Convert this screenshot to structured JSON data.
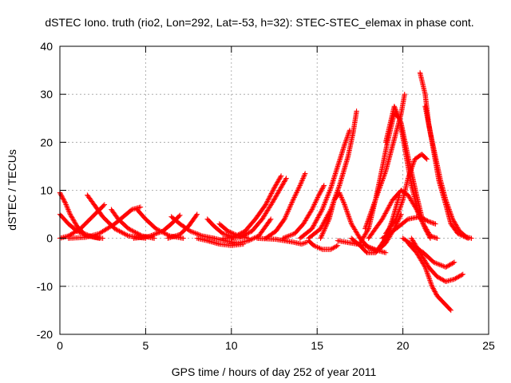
{
  "chart_data": {
    "type": "scatter",
    "title": "dSTEC Iono. truth (rio2, Lon=292, Lat=-53, h=32): STEC-STEC_elemax in phase cont.",
    "xlabel": "GPS time / hours of day 252 of year 2011",
    "ylabel": "dSTEC  / TECUs",
    "xlim": [
      0,
      25
    ],
    "ylim": [
      -20,
      40
    ],
    "xticks": [
      0,
      5,
      10,
      15,
      20,
      25
    ],
    "yticks": [
      -20,
      -10,
      0,
      10,
      20,
      30,
      40
    ],
    "xtick_labels": [
      "0",
      "5",
      "10",
      "15",
      "20",
      "25"
    ],
    "ytick_labels": [
      "-20",
      "-10",
      "0",
      "10",
      "20",
      "30",
      "40"
    ],
    "grid": true,
    "marker": "plus",
    "color": "#ff0000",
    "series": [
      {
        "points": [
          [
            0.0,
            9.5
          ],
          [
            0.3,
            7.5
          ],
          [
            0.6,
            5.0
          ],
          [
            1.0,
            2.5
          ],
          [
            1.4,
            1.0
          ],
          [
            1.9,
            0.3
          ],
          [
            2.5,
            0.0
          ]
        ]
      },
      {
        "points": [
          [
            0.0,
            5.0
          ],
          [
            0.5,
            3.0
          ],
          [
            1.0,
            1.5
          ],
          [
            1.6,
            0.5
          ],
          [
            2.3,
            0.0
          ]
        ]
      },
      {
        "points": [
          [
            0.0,
            0.0
          ],
          [
            0.5,
            0.5
          ],
          [
            1.2,
            2.0
          ],
          [
            1.9,
            4.5
          ],
          [
            2.6,
            7.0
          ]
        ]
      },
      {
        "points": [
          [
            0.5,
            0.0
          ],
          [
            1.5,
            0.2
          ],
          [
            2.3,
            1.0
          ],
          [
            3.2,
            3.0
          ],
          [
            4.2,
            6.0
          ],
          [
            4.7,
            6.5
          ]
        ]
      },
      {
        "points": [
          [
            1.6,
            9.0
          ],
          [
            2.0,
            7.0
          ],
          [
            2.5,
            4.5
          ],
          [
            3.2,
            2.0
          ],
          [
            4.0,
            0.5
          ],
          [
            5.0,
            0.0
          ]
        ]
      },
      {
        "points": [
          [
            3.0,
            6.0
          ],
          [
            3.4,
            4.0
          ],
          [
            4.0,
            2.0
          ],
          [
            4.8,
            0.5
          ],
          [
            5.5,
            0.0
          ]
        ]
      },
      {
        "points": [
          [
            4.5,
            6.0
          ],
          [
            5.0,
            4.0
          ],
          [
            5.6,
            2.0
          ],
          [
            6.4,
            0.5
          ],
          [
            7.2,
            0.0
          ]
        ]
      },
      {
        "points": [
          [
            4.3,
            0.0
          ],
          [
            5.2,
            0.4
          ],
          [
            6.0,
            1.5
          ],
          [
            6.5,
            3.0
          ],
          [
            7.0,
            4.8
          ]
        ]
      },
      {
        "points": [
          [
            6.5,
            4.5
          ],
          [
            7.0,
            3.0
          ],
          [
            7.6,
            1.5
          ],
          [
            8.3,
            0.5
          ],
          [
            9.0,
            0.0
          ]
        ]
      },
      {
        "points": [
          [
            6.3,
            0.0
          ],
          [
            7.0,
            0.8
          ],
          [
            7.5,
            2.5
          ],
          [
            8.0,
            5.0
          ]
        ]
      },
      {
        "points": [
          [
            8.6,
            4.0
          ],
          [
            9.0,
            2.5
          ],
          [
            9.5,
            1.0
          ],
          [
            10.2,
            0.2
          ]
        ]
      },
      {
        "points": [
          [
            9.3,
            3.0
          ],
          [
            9.8,
            1.5
          ],
          [
            10.4,
            0.5
          ],
          [
            11.0,
            0.0
          ]
        ]
      },
      {
        "points": [
          [
            8.0,
            0.0
          ],
          [
            8.6,
            -0.5
          ],
          [
            9.3,
            -1.2
          ],
          [
            10.0,
            -1.5
          ],
          [
            10.7,
            -1.2
          ]
        ]
      },
      {
        "points": [
          [
            9.5,
            0.0
          ],
          [
            10.5,
            0.2
          ],
          [
            11.2,
            1.5
          ],
          [
            11.8,
            4.0
          ],
          [
            12.4,
            7.5
          ],
          [
            12.8,
            10.0
          ],
          [
            13.2,
            12.5
          ]
        ]
      },
      {
        "points": [
          [
            10.0,
            0.0
          ],
          [
            10.8,
            1.5
          ],
          [
            11.4,
            4.0
          ],
          [
            12.0,
            7.0
          ],
          [
            12.5,
            10.5
          ],
          [
            12.9,
            13.0
          ]
        ]
      },
      {
        "points": [
          [
            9.0,
            0.0
          ],
          [
            9.6,
            -0.5
          ],
          [
            10.4,
            -1.0
          ],
          [
            11.0,
            -0.5
          ],
          [
            11.6,
            0.5
          ],
          [
            12.0,
            2.5
          ],
          [
            12.3,
            4.0
          ]
        ]
      },
      {
        "points": [
          [
            12.0,
            0.0
          ],
          [
            12.6,
            1.5
          ],
          [
            13.1,
            4.0
          ],
          [
            13.6,
            8.0
          ],
          [
            14.0,
            11.0
          ],
          [
            14.3,
            13.5
          ]
        ]
      },
      {
        "points": [
          [
            13.0,
            0.0
          ],
          [
            13.7,
            1.0
          ],
          [
            14.2,
            3.0
          ],
          [
            14.7,
            6.0
          ],
          [
            15.1,
            9.0
          ],
          [
            15.4,
            11.0
          ]
        ]
      },
      {
        "points": [
          [
            11.5,
            0.0
          ],
          [
            12.6,
            -0.2
          ],
          [
            13.6,
            -0.8
          ],
          [
            14.1,
            -1.2
          ],
          [
            14.4,
            -0.8
          ]
        ]
      },
      {
        "points": [
          [
            14.5,
            -0.5
          ],
          [
            14.8,
            -1.5
          ],
          [
            15.3,
            -2.3
          ],
          [
            15.8,
            -2.3
          ],
          [
            16.2,
            -1.5
          ]
        ]
      },
      {
        "points": [
          [
            14.0,
            0.0
          ],
          [
            14.7,
            2.0
          ],
          [
            15.3,
            6.0
          ],
          [
            15.8,
            10.5
          ],
          [
            16.2,
            15.0
          ],
          [
            16.6,
            19.5
          ],
          [
            16.9,
            22.5
          ]
        ]
      },
      {
        "points": [
          [
            14.5,
            0.0
          ],
          [
            15.2,
            2.0
          ],
          [
            15.8,
            6.0
          ],
          [
            16.3,
            11.0
          ],
          [
            16.8,
            17.0
          ],
          [
            17.1,
            22.0
          ],
          [
            17.3,
            26.5
          ]
        ]
      },
      {
        "points": [
          [
            15.2,
            0.0
          ],
          [
            15.7,
            4.0
          ],
          [
            16.0,
            8.0
          ],
          [
            16.3,
            9.5
          ],
          [
            16.6,
            7.0
          ],
          [
            17.0,
            3.0
          ],
          [
            17.5,
            0.0
          ]
        ]
      },
      {
        "points": [
          [
            16.2,
            -0.5
          ],
          [
            17.0,
            -1.0
          ],
          [
            17.8,
            -1.5
          ],
          [
            18.5,
            -2.5
          ],
          [
            19.0,
            -3.0
          ]
        ]
      },
      {
        "points": [
          [
            17.0,
            0.0
          ],
          [
            17.5,
            -1.5
          ],
          [
            17.9,
            -3.0
          ],
          [
            18.4,
            -3.0
          ],
          [
            19.0,
            -1.0
          ],
          [
            19.5,
            2.0
          ],
          [
            19.9,
            5.0
          ]
        ]
      },
      {
        "points": [
          [
            17.5,
            0.0
          ],
          [
            18.0,
            -2.0
          ],
          [
            18.5,
            -2.5
          ],
          [
            19.0,
            0.0
          ],
          [
            19.4,
            4.0
          ],
          [
            19.8,
            9.0
          ]
        ]
      },
      {
        "points": [
          [
            17.5,
            -1.0
          ],
          [
            18.0,
            2.0
          ],
          [
            18.4,
            8.0
          ],
          [
            18.7,
            13.0
          ],
          [
            19.1,
            20.0
          ],
          [
            19.3,
            23.0
          ],
          [
            19.5,
            26.0
          ],
          [
            19.8,
            25.0
          ],
          [
            20.1,
            19.0
          ],
          [
            20.5,
            11.0
          ],
          [
            21.0,
            4.0
          ]
        ]
      },
      {
        "points": [
          [
            17.8,
            2.0
          ],
          [
            18.2,
            6.0
          ],
          [
            18.6,
            10.0
          ],
          [
            19.0,
            14.0
          ],
          [
            19.3,
            18.0
          ],
          [
            19.6,
            22.0
          ],
          [
            19.9,
            26.0
          ],
          [
            20.1,
            30.0
          ]
        ]
      },
      {
        "points": [
          [
            19.0,
            20.0
          ],
          [
            19.5,
            27.5
          ],
          [
            19.9,
            24.0
          ],
          [
            20.3,
            17.0
          ],
          [
            20.8,
            9.0
          ],
          [
            21.2,
            3.0
          ],
          [
            21.6,
            0.5
          ],
          [
            22.0,
            0.0
          ]
        ]
      },
      {
        "points": [
          [
            18.0,
            0.0
          ],
          [
            18.8,
            4.0
          ],
          [
            19.4,
            8.0
          ],
          [
            19.9,
            10.0
          ],
          [
            20.3,
            9.0
          ],
          [
            20.8,
            6.0
          ],
          [
            21.3,
            2.0
          ],
          [
            21.6,
            0.0
          ]
        ]
      },
      {
        "points": [
          [
            18.8,
            0.0
          ],
          [
            19.6,
            2.0
          ],
          [
            20.3,
            4.0
          ],
          [
            21.0,
            4.5
          ],
          [
            21.5,
            3.5
          ],
          [
            21.9,
            3.0
          ]
        ]
      },
      {
        "points": [
          [
            19.0,
            1.0
          ],
          [
            19.6,
            4.0
          ],
          [
            20.0,
            8.0
          ],
          [
            20.3,
            12.5
          ],
          [
            20.7,
            16.5
          ],
          [
            21.1,
            17.5
          ],
          [
            21.4,
            16.5
          ]
        ]
      },
      {
        "points": [
          [
            20.0,
            0.0
          ],
          [
            20.6,
            -1.5
          ],
          [
            21.2,
            -3.0
          ],
          [
            21.8,
            -5.0
          ],
          [
            22.5,
            -6.0
          ],
          [
            23.0,
            -5.0
          ]
        ]
      },
      {
        "points": [
          [
            20.5,
            0.0
          ],
          [
            21.0,
            -3.0
          ],
          [
            21.5,
            -6.0
          ],
          [
            22.0,
            -8.0
          ],
          [
            22.5,
            -9.0
          ],
          [
            23.0,
            -8.5
          ],
          [
            23.5,
            -7.5
          ]
        ]
      },
      {
        "points": [
          [
            20.3,
            -1.0
          ],
          [
            20.8,
            -3.0
          ],
          [
            21.3,
            -6.0
          ],
          [
            21.7,
            -10.0
          ],
          [
            22.0,
            -12.0
          ],
          [
            22.4,
            -13.5
          ],
          [
            22.8,
            -15.0
          ]
        ]
      },
      {
        "points": [
          [
            21.0,
            34.5
          ],
          [
            21.3,
            30.0
          ],
          [
            21.5,
            24.0
          ],
          [
            21.8,
            18.0
          ],
          [
            22.1,
            12.0
          ],
          [
            22.5,
            7.0
          ],
          [
            22.8,
            3.0
          ],
          [
            23.2,
            1.0
          ],
          [
            23.8,
            0.0
          ]
        ]
      },
      {
        "points": [
          [
            21.3,
            27.5
          ],
          [
            21.6,
            22.0
          ],
          [
            21.9,
            17.0
          ],
          [
            22.2,
            12.0
          ],
          [
            22.5,
            8.0
          ],
          [
            22.9,
            4.0
          ],
          [
            23.3,
            1.5
          ],
          [
            23.7,
            0.3
          ],
          [
            24.0,
            0.0
          ]
        ]
      }
    ]
  }
}
